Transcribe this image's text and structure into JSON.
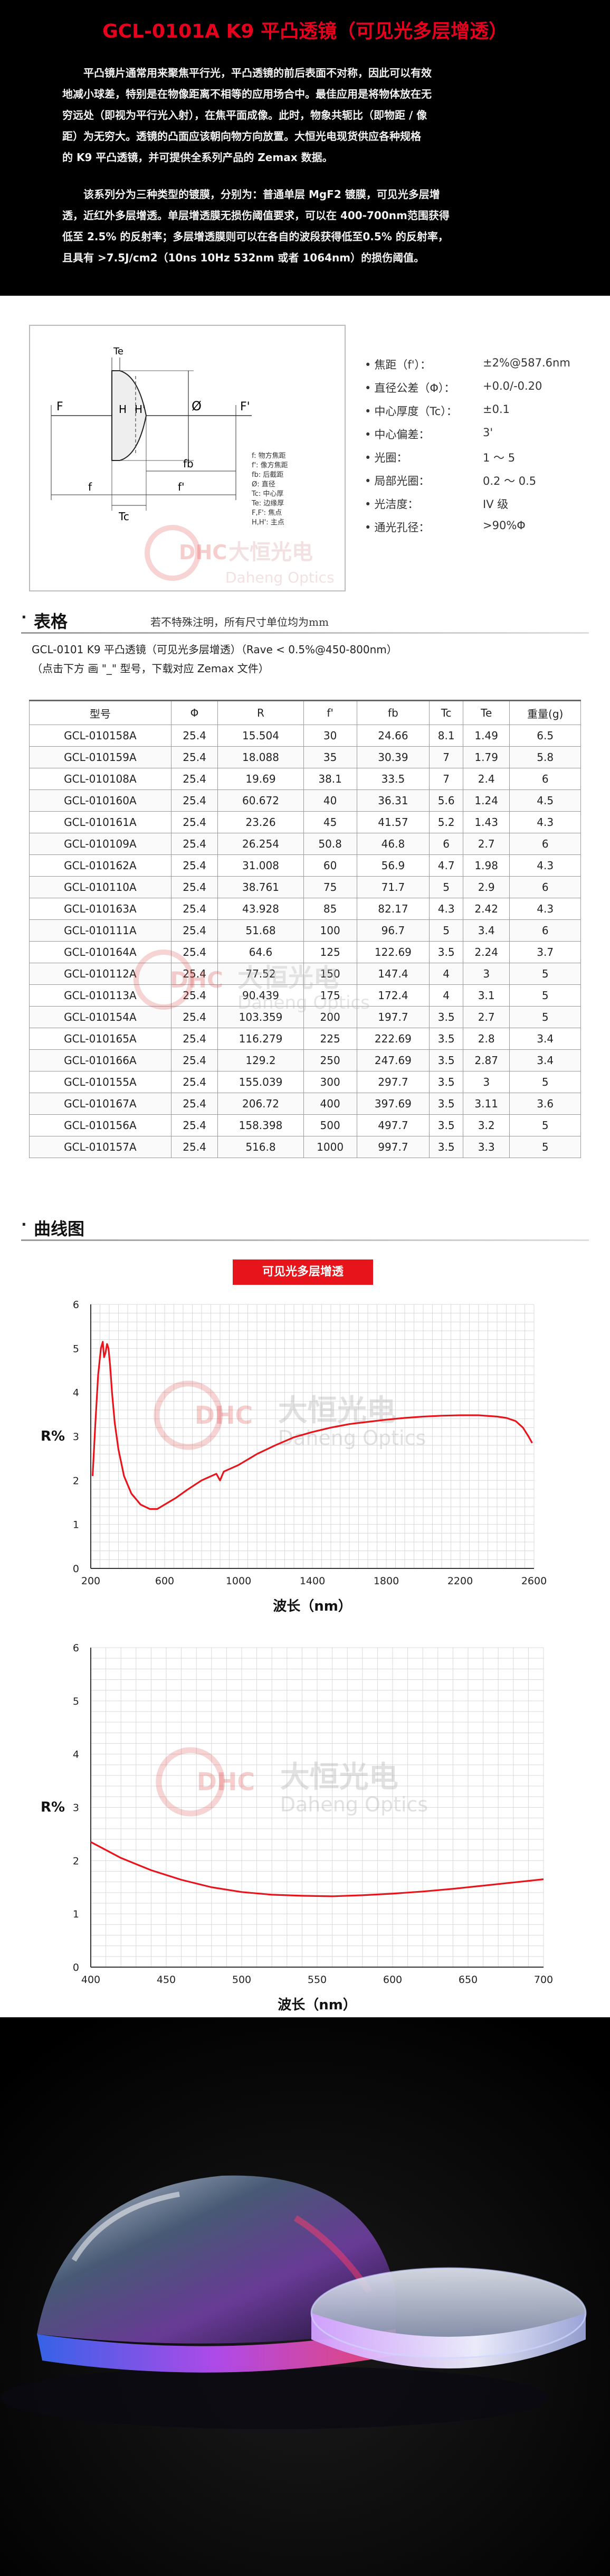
{
  "header": {
    "title": "GCL-0101A K9 平凸透镜（可见光多层增透）",
    "para1_lines": [
      "平凸镜片通常用来聚焦平行光，平凸透镜的前后表面不对称，因此可以有效",
      "地减小球差，特别是在物像距离不相等的应用场合中。最佳应用是将物体放在无",
      "穷远处（即视为平行光入射），在焦平面成像。此时，物象共轭比（即物距 / 像",
      "距）为无穷大。透镜的凸面应该朝向物方向放置。大恒光电现货供应各种规格",
      "的 K9 平凸透镜，并可提供全系列产品的 Zemax 数据。"
    ],
    "para2_lines": [
      "该系列分为三种类型的镀膜，分别为：普通单层 MgF2 镀膜，可见光多层增",
      "透，近红外多层增透。单层增透膜无损伤阈值要求，可以在 400-700nm范围获得",
      "低至 2.5% 的反射率；多层增透膜则可以在各自的波段获得低至0.5% 的反射率，",
      "且具有 >7.5J/cm2（10ns 10Hz 532nm 或者 1064nm）的损伤阈值。"
    ]
  },
  "diagram": {
    "labels": {
      "Te": "Te",
      "F": "F",
      "H": "H",
      "Hp": "H'",
      "Phi": "Ø",
      "Fp": "F'",
      "fb": "fb",
      "f_left": "f",
      "f_right": "f'",
      "Tc": "Tc"
    },
    "legend": [
      "f:   物方焦距",
      "f':  像方焦距",
      "fb:  后截距",
      "Ø:   直径",
      "Tc:  中心厚",
      "Te:  边缘厚",
      "F,F': 焦点",
      "H,H': 主点"
    ]
  },
  "specs": [
    {
      "label": "焦距（f'）：",
      "value": "±2%@587.6nm"
    },
    {
      "label": "直径公差（Φ）：",
      "value": "+0.0/-0.20"
    },
    {
      "label": "中心厚度（Tc）：",
      "value": "±0.1"
    },
    {
      "label": "中心偏差：",
      "value": "3'"
    },
    {
      "label": "光圈：",
      "value": "1 ～ 5"
    },
    {
      "label": "局部光圈：",
      "value": "0.2 ～ 0.5"
    },
    {
      "label": "光洁度：",
      "value": "IV 级"
    },
    {
      "label": "通光孔径：",
      "value": ">90%Φ"
    }
  ],
  "watermark": {
    "dhc": "DHC",
    "cn": "大恒光电",
    "en": "Daheng Optics"
  },
  "section_table": {
    "dot": "·",
    "title": "表格",
    "note": "若不特殊注明，所有尺寸单位均为mm"
  },
  "table_intro": {
    "line1": "GCL-0101 K9 平凸透镜（可见光多层增透）（Rave < 0.5%@450-800nm）",
    "line2": "（点击下方 画 \"_\" 型号，下载对应 Zemax 文件）"
  },
  "table": {
    "headers": [
      "型号",
      "Φ",
      "R",
      "f'",
      "fb",
      "Tc",
      "Te",
      "重量(g)"
    ],
    "rows": [
      [
        "GCL-010158A",
        "25.4",
        "15.504",
        "30",
        "24.66",
        "8.1",
        "1.49",
        "6.5"
      ],
      [
        "GCL-010159A",
        "25.4",
        "18.088",
        "35",
        "30.39",
        "7",
        "1.79",
        "5.8"
      ],
      [
        "GCL-010108A",
        "25.4",
        "19.69",
        "38.1",
        "33.5",
        "7",
        "2.4",
        "6"
      ],
      [
        "GCL-010160A",
        "25.4",
        "60.672",
        "40",
        "36.31",
        "5.6",
        "1.24",
        "4.5"
      ],
      [
        "GCL-010161A",
        "25.4",
        "23.26",
        "45",
        "41.57",
        "5.2",
        "1.43",
        "4.3"
      ],
      [
        "GCL-010109A",
        "25.4",
        "26.254",
        "50.8",
        "46.8",
        "6",
        "2.7",
        "6"
      ],
      [
        "GCL-010162A",
        "25.4",
        "31.008",
        "60",
        "56.9",
        "4.7",
        "1.98",
        "4.3"
      ],
      [
        "GCL-010110A",
        "25.4",
        "38.761",
        "75",
        "71.7",
        "5",
        "2.9",
        "6"
      ],
      [
        "GCL-010163A",
        "25.4",
        "43.928",
        "85",
        "82.17",
        "4.3",
        "2.42",
        "4.3"
      ],
      [
        "GCL-010111A",
        "25.4",
        "51.68",
        "100",
        "96.7",
        "5",
        "3.4",
        "6"
      ],
      [
        "GCL-010164A",
        "25.4",
        "64.6",
        "125",
        "122.69",
        "3.5",
        "2.24",
        "3.7"
      ],
      [
        "GCL-010112A",
        "25.4",
        "77.52",
        "150",
        "147.4",
        "4",
        "3",
        "5"
      ],
      [
        "GCL-010113A",
        "25.4",
        "90.439",
        "175",
        "172.4",
        "4",
        "3.1",
        "5"
      ],
      [
        "GCL-010154A",
        "25.4",
        "103.359",
        "200",
        "197.7",
        "3.5",
        "2.7",
        "5"
      ],
      [
        "GCL-010165A",
        "25.4",
        "116.279",
        "225",
        "222.69",
        "3.5",
        "2.8",
        "3.4"
      ],
      [
        "GCL-010166A",
        "25.4",
        "129.2",
        "250",
        "247.69",
        "3.5",
        "2.87",
        "3.4"
      ],
      [
        "GCL-010155A",
        "25.4",
        "155.039",
        "300",
        "297.7",
        "3.5",
        "3",
        "5"
      ],
      [
        "GCL-010167A",
        "25.4",
        "206.72",
        "400",
        "397.69",
        "3.5",
        "3.11",
        "3.6"
      ],
      [
        "GCL-010156A",
        "25.4",
        "158.398",
        "500",
        "497.7",
        "3.5",
        "3.2",
        "5"
      ],
      [
        "GCL-010157A",
        "25.4",
        "516.8",
        "1000",
        "997.7",
        "3.5",
        "3.3",
        "5"
      ]
    ]
  },
  "section_curve": {
    "dot": "·",
    "title": "曲线图"
  },
  "chart_title": "可见光多层增透",
  "chart_data": [
    {
      "type": "line",
      "title": "",
      "xlabel": "波长（nm）",
      "ylabel": "R%",
      "xlim": [
        200,
        2600
      ],
      "ylim": [
        0,
        6
      ],
      "xticks": [
        "200",
        "600",
        "1000",
        "1400",
        "1800",
        "2200",
        "2600"
      ],
      "yticks": [
        "0",
        "1",
        "2",
        "3",
        "4",
        "5",
        "6"
      ],
      "grid": true,
      "series": [
        {
          "color": "#e8141b",
          "x": [
            210,
            225,
            240,
            255,
            265,
            272,
            280,
            288,
            296,
            305,
            315,
            330,
            350,
            380,
            420,
            470,
            520,
            560,
            600,
            660,
            720,
            800,
            880,
            900,
            920,
            1000,
            1100,
            1200,
            1300,
            1400,
            1500,
            1600,
            1700,
            1800,
            1900,
            2000,
            2100,
            2200,
            2300,
            2400,
            2450,
            2500,
            2540,
            2570,
            2590
          ],
          "y": [
            2.1,
            3.3,
            4.4,
            5.0,
            5.15,
            4.8,
            4.9,
            5.1,
            5.0,
            4.6,
            4.0,
            3.3,
            2.7,
            2.1,
            1.7,
            1.45,
            1.35,
            1.35,
            1.45,
            1.6,
            1.78,
            2.0,
            2.15,
            2.0,
            2.2,
            2.35,
            2.6,
            2.8,
            2.98,
            3.1,
            3.2,
            3.28,
            3.33,
            3.38,
            3.42,
            3.45,
            3.47,
            3.48,
            3.48,
            3.45,
            3.42,
            3.35,
            3.2,
            3.0,
            2.85
          ]
        }
      ]
    },
    {
      "type": "line",
      "title": "",
      "xlabel": "波长（nm）",
      "ylabel": "R%",
      "xlim": [
        400,
        700
      ],
      "ylim": [
        0,
        6
      ],
      "xticks": [
        "400",
        "450",
        "500",
        "550",
        "600",
        "650",
        "700"
      ],
      "yticks": [
        "0",
        "1",
        "2",
        "3",
        "4",
        "5",
        "6"
      ],
      "grid": true,
      "series": [
        {
          "color": "#e8141b",
          "x": [
            400,
            420,
            440,
            460,
            480,
            500,
            520,
            540,
            560,
            580,
            600,
            620,
            640,
            660,
            680,
            700
          ],
          "y": [
            2.35,
            2.05,
            1.82,
            1.64,
            1.5,
            1.41,
            1.36,
            1.34,
            1.33,
            1.35,
            1.38,
            1.42,
            1.47,
            1.53,
            1.59,
            1.65
          ]
        }
      ]
    }
  ]
}
